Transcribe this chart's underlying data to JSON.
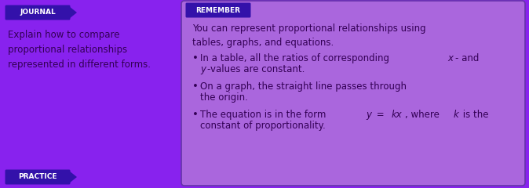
{
  "bg_color": "#8822ee",
  "journal_label": "JOURNAL",
  "journal_bg": "#3311aa",
  "journal_text_color": "#ffffff",
  "journal_body": "Explain how to compare\nproportional relationships\nrepresented in different forms.",
  "journal_body_color": "#330066",
  "practice_label": "PRACTICE",
  "practice_bg": "#3311aa",
  "practice_text_color": "#ffffff",
  "remember_label": "REMEMBER",
  "remember_bg": "#3311aa",
  "remember_text_color": "#ffffff",
  "right_box_bg": "#aa66dd",
  "right_box_border": "#6633aa",
  "right_intro": "You can represent proportional relationships using\ntables, graphs, and equations.",
  "bullet1a": "In a table, all the ratios of corresponding ",
  "bullet1b": "x",
  "bullet1c": "- and",
  "bullet1d": "y",
  "bullet1e": "-values are constant.",
  "bullet2a": "On a graph, the straight line passes through",
  "bullet2b": "the origin.",
  "bullet3a": "The equation is in the form ",
  "bullet3b": "y",
  "bullet3c": " = ",
  "bullet3d": "kx",
  "bullet3e": ", where ",
  "bullet3f": "k",
  "bullet3g": " is the",
  "bullet3h": "constant of proportionality.",
  "text_color": "#330055",
  "figw": 6.74,
  "figh": 2.4,
  "dpi": 100
}
